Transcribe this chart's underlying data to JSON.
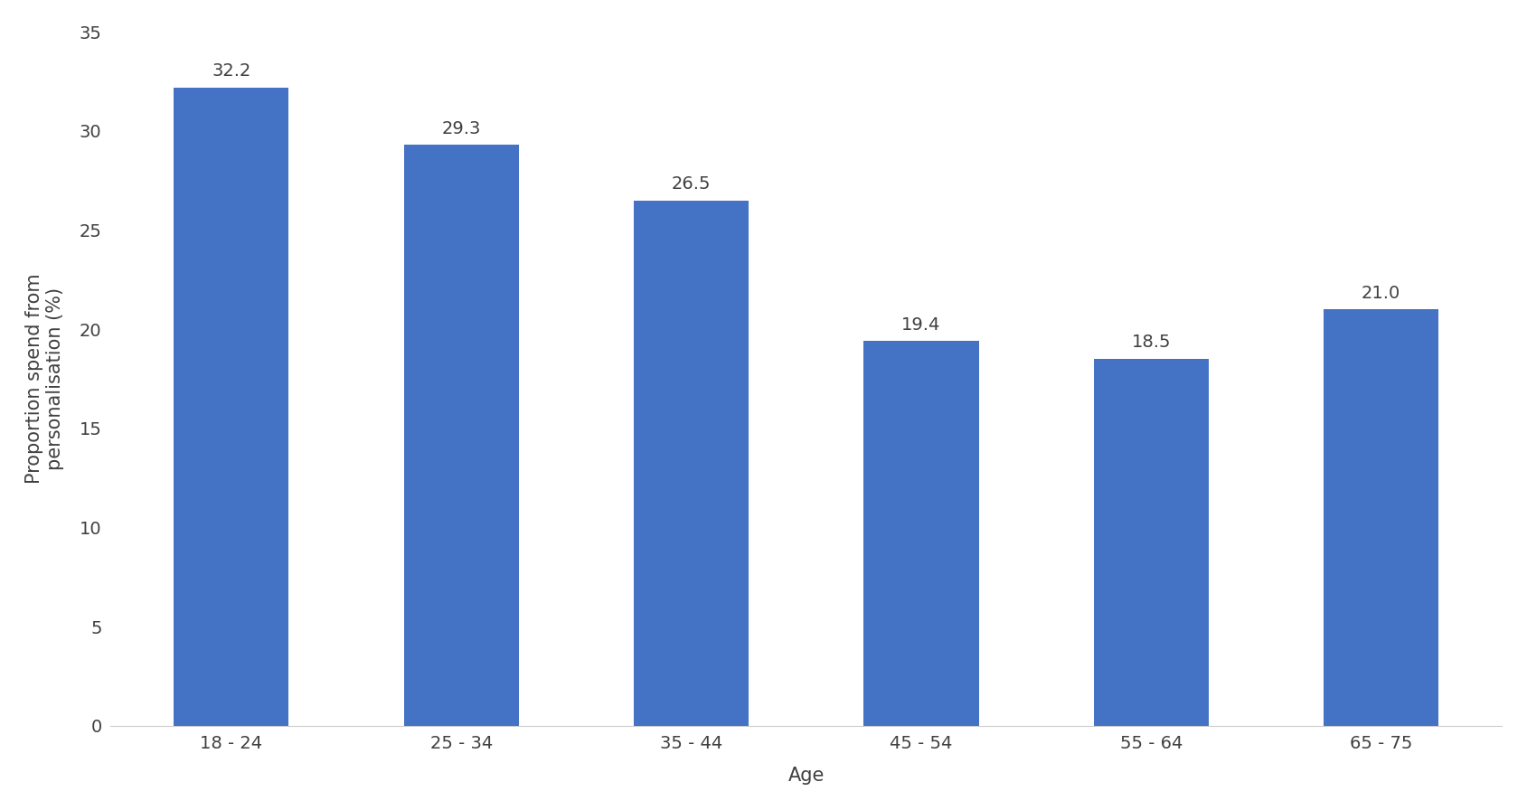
{
  "categories": [
    "18 - 24",
    "25 - 34",
    "35 - 44",
    "45 - 54",
    "55 - 64",
    "65 - 75"
  ],
  "values": [
    32.2,
    29.3,
    26.5,
    19.4,
    18.5,
    21.0
  ],
  "bar_color": "#4472C4",
  "ylabel": "Proportion spend from\npersonalisation (%)",
  "xlabel": "Age",
  "ylim": [
    0,
    35
  ],
  "yticks": [
    0,
    5,
    10,
    15,
    20,
    25,
    30,
    35
  ],
  "background_color": "#FFFFFF",
  "label_fontsize": 15,
  "tick_fontsize": 14,
  "annotation_fontsize": 14,
  "bar_width": 0.5
}
